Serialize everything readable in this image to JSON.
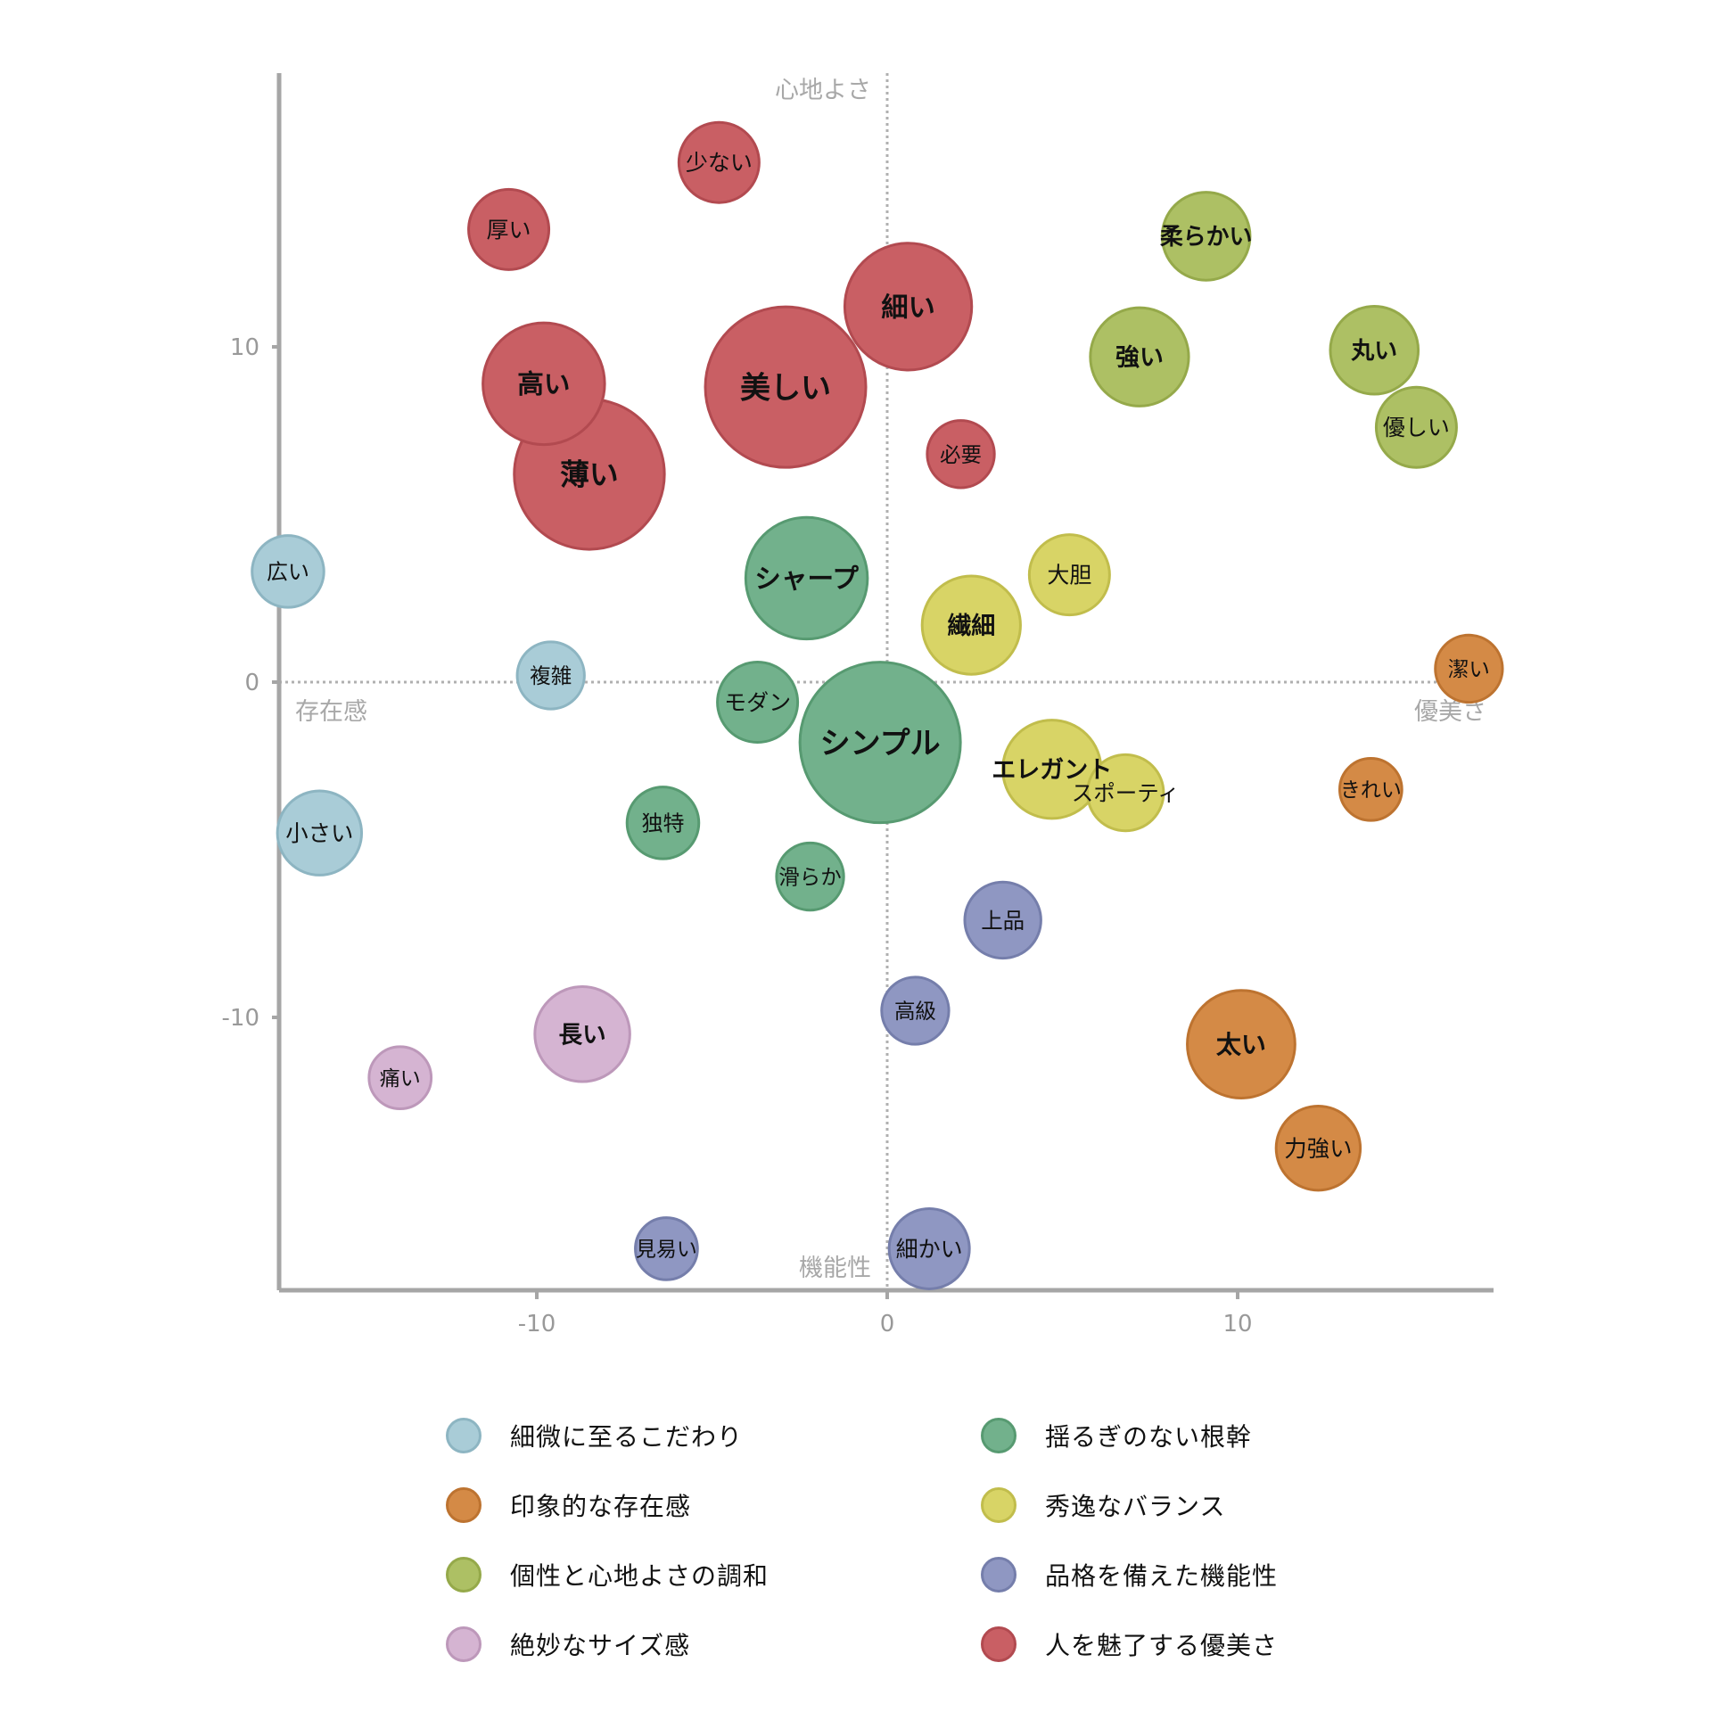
{
  "chart_data": {
    "type": "scatter",
    "variant": "bubble",
    "xlim": [
      -17.3,
      17.3
    ],
    "ylim": [
      -18,
      18
    ],
    "x_ticks": [
      "-10",
      "0",
      "10"
    ],
    "y_ticks": [
      "10",
      "0",
      "-10"
    ],
    "quadrant_labels": {
      "top": "心地よさ",
      "bottom": "機能性",
      "left": "存在感",
      "right": "優美さ"
    },
    "grid": false,
    "legend_position": "bottom",
    "groups": [
      {
        "name": "細微に至るこだわり",
        "color": "#a9ccd7",
        "stroke": "#8db5c2"
      },
      {
        "name": "揺るぎのない根幹",
        "color": "#72b18c",
        "stroke": "#579a71"
      },
      {
        "name": "印象的な存在感",
        "color": "#d48a46",
        "stroke": "#bd7330"
      },
      {
        "name": "秀逸なバランス",
        "color": "#d8d466",
        "stroke": "#c1bd4c"
      },
      {
        "name": "個性と心地よさの調和",
        "color": "#adc064",
        "stroke": "#95a94a"
      },
      {
        "name": "品格を備えた機能性",
        "color": "#8f97c2",
        "stroke": "#757eab"
      },
      {
        "name": "絶妙なサイズ感",
        "color": "#d5b4d2",
        "stroke": "#bd98ba"
      },
      {
        "name": "人を魅了する優美さ",
        "color": "#c95f64",
        "stroke": "#b24a50"
      }
    ],
    "points": [
      {
        "label": "少ない",
        "x": -4.8,
        "y": 15.5,
        "size": 1.0,
        "group": 7
      },
      {
        "label": "厚い",
        "x": -10.8,
        "y": 13.5,
        "size": 1.0,
        "group": 7
      },
      {
        "label": "細い",
        "x": 0.6,
        "y": 11.2,
        "size": 2.5,
        "group": 7
      },
      {
        "label": "高い",
        "x": -9.8,
        "y": 8.9,
        "size": 2.3,
        "group": 7
      },
      {
        "label": "美しい",
        "x": -2.9,
        "y": 8.8,
        "size": 4.0,
        "group": 7
      },
      {
        "label": "薄い",
        "x": -8.5,
        "y": 6.2,
        "size": 3.5,
        "group": 7
      },
      {
        "label": "必要",
        "x": 2.1,
        "y": 6.8,
        "size": 0.7,
        "group": 7
      },
      {
        "label": "柔らかい",
        "x": 9.1,
        "y": 13.3,
        "size": 1.2,
        "group": 4
      },
      {
        "label": "強い",
        "x": 7.2,
        "y": 9.7,
        "size": 1.5,
        "group": 4
      },
      {
        "label": "丸い",
        "x": 13.9,
        "y": 9.9,
        "size": 1.2,
        "group": 4
      },
      {
        "label": "優しい",
        "x": 15.1,
        "y": 7.6,
        "size": 1.0,
        "group": 4
      },
      {
        "label": "シャープ",
        "x": -2.3,
        "y": 3.1,
        "size": 2.3,
        "group": 1
      },
      {
        "label": "モダン",
        "x": -3.7,
        "y": -0.6,
        "size": 1.0,
        "group": 1
      },
      {
        "label": "シンプル",
        "x": -0.2,
        "y": -1.8,
        "size": 4.0,
        "group": 1
      },
      {
        "label": "独特",
        "x": -6.4,
        "y": -4.2,
        "size": 0.8,
        "group": 1
      },
      {
        "label": "滑らか",
        "x": -2.2,
        "y": -5.8,
        "size": 0.7,
        "group": 1
      },
      {
        "label": "大胆",
        "x": 5.2,
        "y": 3.2,
        "size": 1.0,
        "group": 3
      },
      {
        "label": "繊細",
        "x": 2.4,
        "y": 1.7,
        "size": 1.5,
        "group": 3
      },
      {
        "label": "エレガント",
        "x": 4.7,
        "y": -2.6,
        "size": 1.5,
        "group": 3
      },
      {
        "label": "スポーティ",
        "x": 6.8,
        "y": -3.3,
        "size": 0.9,
        "group": 3
      },
      {
        "label": "潔い",
        "x": 16.6,
        "y": 0.4,
        "size": 0.7,
        "group": 2
      },
      {
        "label": "きれい",
        "x": 13.8,
        "y": -3.2,
        "size": 0.6,
        "group": 2
      },
      {
        "label": "太い",
        "x": 10.1,
        "y": -10.8,
        "size": 1.8,
        "group": 2
      },
      {
        "label": "力強い",
        "x": 12.3,
        "y": -13.9,
        "size": 1.1,
        "group": 2
      },
      {
        "label": "広い",
        "x": -17.1,
        "y": 3.3,
        "size": 0.8,
        "group": 0
      },
      {
        "label": "複雑",
        "x": -9.6,
        "y": 0.2,
        "size": 0.7,
        "group": 0
      },
      {
        "label": "小さい",
        "x": -16.2,
        "y": -4.5,
        "size": 1.1,
        "group": 0
      },
      {
        "label": "上品",
        "x": 3.3,
        "y": -7.1,
        "size": 0.9,
        "group": 5
      },
      {
        "label": "高級",
        "x": 0.8,
        "y": -9.8,
        "size": 0.7,
        "group": 5
      },
      {
        "label": "見易い",
        "x": -6.3,
        "y": -16.9,
        "size": 0.6,
        "group": 5
      },
      {
        "label": "細かい",
        "x": 1.2,
        "y": -16.9,
        "size": 1.0,
        "group": 5
      },
      {
        "label": "長い",
        "x": -8.7,
        "y": -10.5,
        "size": 1.4,
        "group": 6
      },
      {
        "label": "痛い",
        "x": -13.9,
        "y": -11.8,
        "size": 0.6,
        "group": 6
      }
    ]
  }
}
